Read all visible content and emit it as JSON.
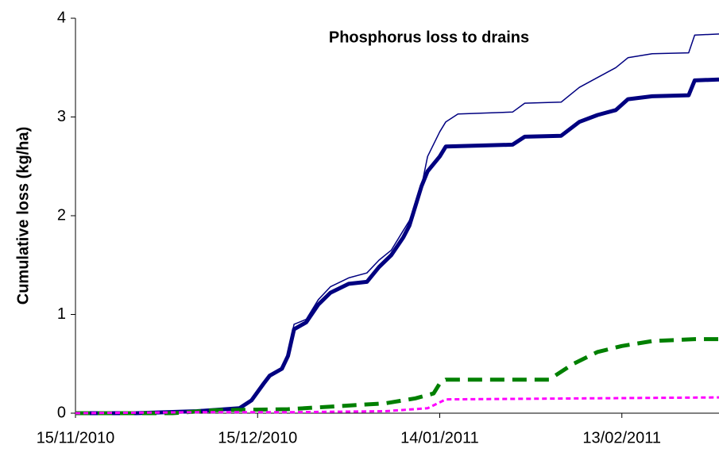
{
  "chart_data": {
    "type": "line",
    "title": "Phosphorus loss to drains",
    "y_label": "Cumulative loss (kg/ha)",
    "xlim": [
      "15/11/2010",
      "01/03/2011"
    ],
    "xticks": [
      "15/11/2010",
      "15/12/2010",
      "14/01/2011",
      "13/02/2011"
    ],
    "ylim": [
      0,
      4
    ],
    "yticks": [
      0,
      1,
      2,
      3,
      4
    ],
    "grid": false,
    "series": [
      {
        "color": "#000080",
        "width": 1.5,
        "dash": "none",
        "x": [
          "15/11/2010",
          "25/11/2010",
          "05/12/2010",
          "12/12/2010",
          "14/12/2010",
          "16/12/2010",
          "17/12/2010",
          "19/12/2010",
          "20/12/2010",
          "21/12/2010",
          "23/12/2010",
          "25/12/2010",
          "27/12/2010",
          "30/12/2010",
          "02/01/2011",
          "04/01/2011",
          "06/01/2011",
          "08/01/2011",
          "09/01/2011",
          "11/01/2011",
          "12/01/2011",
          "14/01/2011",
          "15/01/2011",
          "17/01/2011",
          "26/01/2011",
          "28/01/2011",
          "03/02/2011",
          "06/02/2011",
          "09/02/2011",
          "12/02/2011",
          "14/02/2011",
          "18/02/2011",
          "24/02/2011",
          "25/02/2011",
          "01/03/2011"
        ],
        "values": [
          0,
          0,
          0.02,
          0.05,
          0.13,
          0.3,
          0.38,
          0.45,
          0.6,
          0.9,
          0.95,
          1.15,
          1.28,
          1.37,
          1.42,
          1.55,
          1.65,
          1.85,
          1.95,
          2.3,
          2.6,
          2.85,
          2.95,
          3.03,
          3.05,
          3.14,
          3.15,
          3.3,
          3.4,
          3.5,
          3.6,
          3.64,
          3.65,
          3.83,
          3.84
        ]
      },
      {
        "color": "#000080",
        "width": 5,
        "dash": "none",
        "x": [
          "15/11/2010",
          "25/11/2010",
          "05/12/2010",
          "12/12/2010",
          "14/12/2010",
          "16/12/2010",
          "17/12/2010",
          "19/12/2010",
          "20/12/2010",
          "21/12/2010",
          "23/12/2010",
          "25/12/2010",
          "27/12/2010",
          "30/12/2010",
          "02/01/2011",
          "04/01/2011",
          "06/01/2011",
          "08/01/2011",
          "09/01/2011",
          "11/01/2011",
          "12/01/2011",
          "14/01/2011",
          "15/01/2011",
          "26/01/2011",
          "28/01/2011",
          "03/02/2011",
          "06/02/2011",
          "09/02/2011",
          "12/02/2011",
          "14/02/2011",
          "18/02/2011",
          "24/02/2011",
          "25/02/2011",
          "01/03/2011"
        ],
        "values": [
          0,
          0,
          0.02,
          0.05,
          0.13,
          0.3,
          0.38,
          0.45,
          0.58,
          0.85,
          0.92,
          1.1,
          1.22,
          1.31,
          1.33,
          1.48,
          1.6,
          1.78,
          1.9,
          2.3,
          2.45,
          2.6,
          2.7,
          2.72,
          2.8,
          2.81,
          2.95,
          3.02,
          3.07,
          3.18,
          3.21,
          3.22,
          3.37,
          3.38
        ]
      },
      {
        "color": "#008000",
        "width": 5,
        "dash": "18 10",
        "x": [
          "15/11/2010",
          "01/12/2010",
          "08/12/2010",
          "20/12/2010",
          "28/12/2010",
          "05/01/2011",
          "10/01/2011",
          "13/01/2011",
          "14/01/2011",
          "15/01/2011",
          "01/02/2011",
          "05/02/2011",
          "09/02/2011",
          "13/02/2011",
          "18/02/2011",
          "25/02/2011",
          "01/03/2011"
        ],
        "values": [
          0,
          0,
          0.03,
          0.04,
          0.07,
          0.1,
          0.15,
          0.2,
          0.3,
          0.34,
          0.34,
          0.5,
          0.62,
          0.68,
          0.73,
          0.75,
          0.75
        ]
      },
      {
        "color": "#ff00ff",
        "width": 3,
        "dash": "6 4",
        "x": [
          "15/11/2010",
          "05/12/2010",
          "20/12/2010",
          "05/01/2011",
          "12/01/2011",
          "15/01/2011",
          "01/03/2011"
        ],
        "values": [
          0,
          0.01,
          0.01,
          0.02,
          0.05,
          0.14,
          0.16
        ]
      }
    ]
  }
}
